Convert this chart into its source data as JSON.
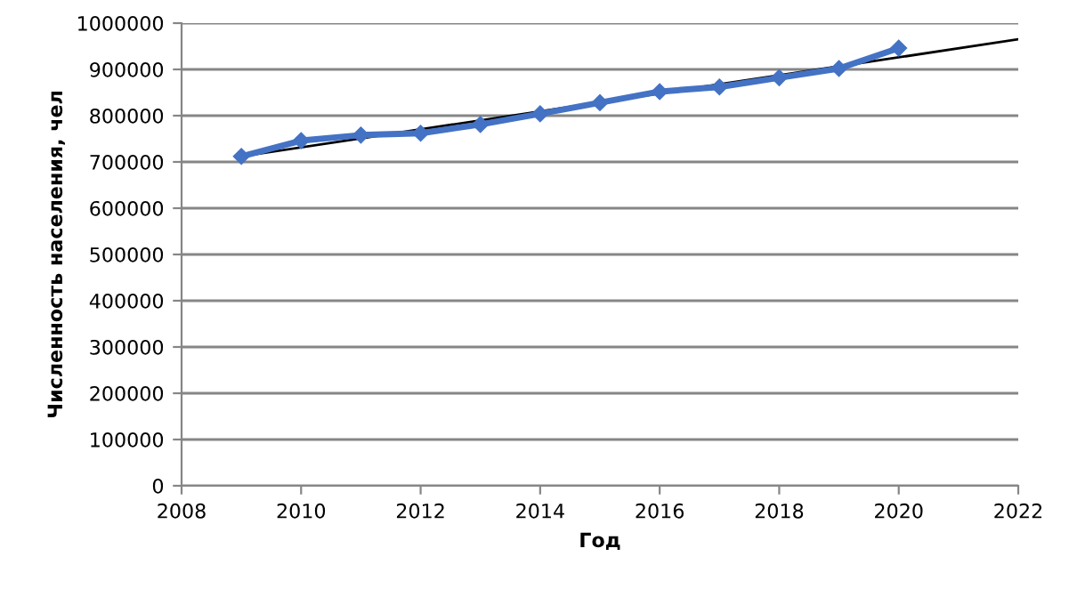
{
  "chart_data": {
    "type": "line",
    "xlabel": "Год",
    "ylabel": "Численность населения, чел",
    "xlim": [
      2008,
      2022
    ],
    "xticks": [
      2008,
      2010,
      2012,
      2014,
      2016,
      2018,
      2020,
      2022
    ],
    "ylim": [
      0,
      1000000
    ],
    "yticks": [
      0,
      100000,
      200000,
      300000,
      400000,
      500000,
      600000,
      700000,
      800000,
      900000,
      1000000
    ],
    "grid": "y",
    "legend": false,
    "series": [
      {
        "color": "#4472c4",
        "marker": "diamond",
        "x": [
          2009,
          2010,
          2011,
          2012,
          2013,
          2014,
          2015,
          2016,
          2017,
          2018,
          2019,
          2020
        ],
        "values": [
          712000,
          746000,
          758000,
          762000,
          781000,
          804000,
          828000,
          852000,
          862000,
          882000,
          902000,
          946000
        ]
      },
      {
        "color": "#000000",
        "marker": "none",
        "x": [
          2009,
          2022
        ],
        "values": [
          712000,
          965000
        ]
      }
    ]
  }
}
